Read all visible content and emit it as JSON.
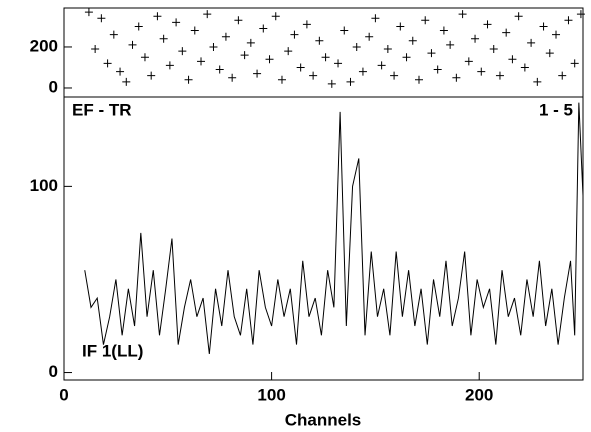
{
  "chart_data": [
    {
      "type": "scatter",
      "color": "#000000",
      "x": [
        12,
        15,
        18,
        21,
        24,
        27,
        30,
        33,
        36,
        39,
        42,
        45,
        48,
        51,
        54,
        57,
        60,
        63,
        66,
        69,
        72,
        75,
        78,
        81,
        84,
        87,
        90,
        93,
        96,
        99,
        102,
        105,
        108,
        111,
        114,
        117,
        120,
        123,
        126,
        129,
        132,
        135,
        138,
        141,
        144,
        147,
        150,
        153,
        156,
        159,
        162,
        165,
        168,
        171,
        174,
        177,
        180,
        183,
        186,
        189,
        192,
        195,
        198,
        201,
        204,
        207,
        210,
        213,
        216,
        219,
        222,
        225,
        228,
        231,
        234,
        237,
        240,
        243,
        246,
        249
      ],
      "y": [
        370,
        190,
        340,
        120,
        260,
        80,
        30,
        210,
        300,
        150,
        60,
        350,
        240,
        110,
        320,
        180,
        40,
        280,
        130,
        360,
        200,
        90,
        250,
        50,
        330,
        160,
        220,
        70,
        290,
        140,
        350,
        40,
        180,
        260,
        100,
        310,
        60,
        230,
        150,
        20,
        120,
        280,
        30,
        200,
        80,
        250,
        340,
        110,
        190,
        60,
        300,
        150,
        230,
        40,
        330,
        170,
        90,
        280,
        210,
        50,
        360,
        130,
        240,
        80,
        310,
        190,
        60,
        270,
        140,
        350,
        100,
        220,
        30,
        300,
        170,
        260,
        60,
        330,
        120,
        360
      ]
    },
    {
      "type": "line",
      "color": "#000000",
      "xlabel": "Channels",
      "annotations": [
        "EF - TR",
        "1 - 5",
        "IF 1(LL)"
      ],
      "xlim": [
        0,
        250
      ],
      "xticks": [
        0,
        100,
        200
      ],
      "x": [
        10,
        13,
        16,
        19,
        22,
        25,
        28,
        31,
        34,
        37,
        40,
        43,
        46,
        49,
        52,
        55,
        58,
        61,
        64,
        67,
        70,
        73,
        76,
        79,
        82,
        85,
        88,
        91,
        94,
        97,
        100,
        103,
        106,
        109,
        112,
        115,
        118,
        121,
        124,
        127,
        130,
        133,
        136,
        139,
        142,
        145,
        148,
        151,
        154,
        157,
        160,
        163,
        166,
        169,
        172,
        175,
        178,
        181,
        184,
        187,
        190,
        193,
        196,
        199,
        202,
        205,
        208,
        211,
        214,
        217,
        220,
        223,
        226,
        229,
        232,
        235,
        238,
        241,
        244,
        246,
        248,
        250
      ],
      "values": [
        55,
        35,
        40,
        15,
        30,
        50,
        20,
        45,
        25,
        75,
        30,
        55,
        20,
        45,
        72,
        15,
        35,
        50,
        30,
        40,
        10,
        45,
        25,
        55,
        30,
        20,
        45,
        15,
        55,
        35,
        25,
        50,
        30,
        45,
        15,
        60,
        30,
        40,
        20,
        55,
        35,
        140,
        25,
        100,
        115,
        20,
        65,
        30,
        45,
        20,
        65,
        30,
        55,
        25,
        45,
        15,
        50,
        30,
        60,
        25,
        40,
        65,
        20,
        50,
        35,
        45,
        15,
        55,
        30,
        40,
        20,
        50,
        30,
        60,
        25,
        45,
        15,
        40,
        60,
        20,
        145,
        95
      ]
    }
  ],
  "axes": {
    "top_ylim": [
      -44,
      390
    ],
    "top_yticks": [
      0,
      200
    ],
    "bottom_ylim": [
      -4,
      148
    ],
    "bottom_yticks": [
      0,
      100
    ]
  }
}
